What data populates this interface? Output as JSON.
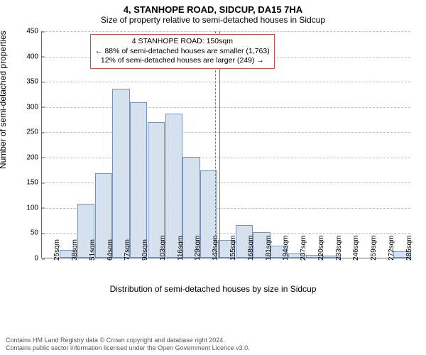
{
  "title_main": "4, STANHOPE ROAD, SIDCUP, DA15 7HA",
  "title_sub": "Size of property relative to semi-detached houses in Sidcup",
  "ylabel": "Number of semi-detached properties",
  "xlabel": "Distribution of semi-detached houses by size in Sidcup",
  "footer_line1": "Contains HM Land Registry data © Crown copyright and database right 2024.",
  "footer_line2": "Contains public sector information licensed under the Open Government Licence v3.0.",
  "chart": {
    "type": "histogram",
    "background_color": "#ffffff",
    "grid_color": "#bfbfbf",
    "axis_color": "#666666",
    "bar_fill": "#d6e1ef",
    "bar_border": "#7a93b8",
    "ref_line_color": "#c7504f",
    "annotation_border": "#c7504f",
    "ylim": [
      0,
      450
    ],
    "ytick_step": 50,
    "x_categories": [
      "25sqm",
      "38sqm",
      "51sqm",
      "64sqm",
      "77sqm",
      "90sqm",
      "103sqm",
      "116sqm",
      "129sqm",
      "142sqm",
      "155sqm",
      "168sqm",
      "181sqm",
      "194sqm",
      "207sqm",
      "220sqm",
      "233sqm",
      "246sqm",
      "259sqm",
      "272sqm",
      "285sqm"
    ],
    "values": [
      0,
      16,
      107,
      167,
      335,
      308,
      268,
      285,
      200,
      173,
      35,
      65,
      50,
      24,
      9,
      5,
      4,
      0,
      0,
      0,
      12
    ],
    "reference_index": 9.6,
    "reference_secondary_index": 9.35,
    "annotation_lines": [
      "4 STANHOPE ROAD: 150sqm",
      "← 88% of semi-detached houses are smaller (1,763)",
      "12% of semi-detached houses are larger (249) →"
    ],
    "title_fontsize": 13,
    "subtitle_fontsize": 12,
    "axis_label_fontsize": 12,
    "tick_fontsize": 10,
    "annotation_fontsize": 10.5,
    "footer_fontsize": 9
  }
}
